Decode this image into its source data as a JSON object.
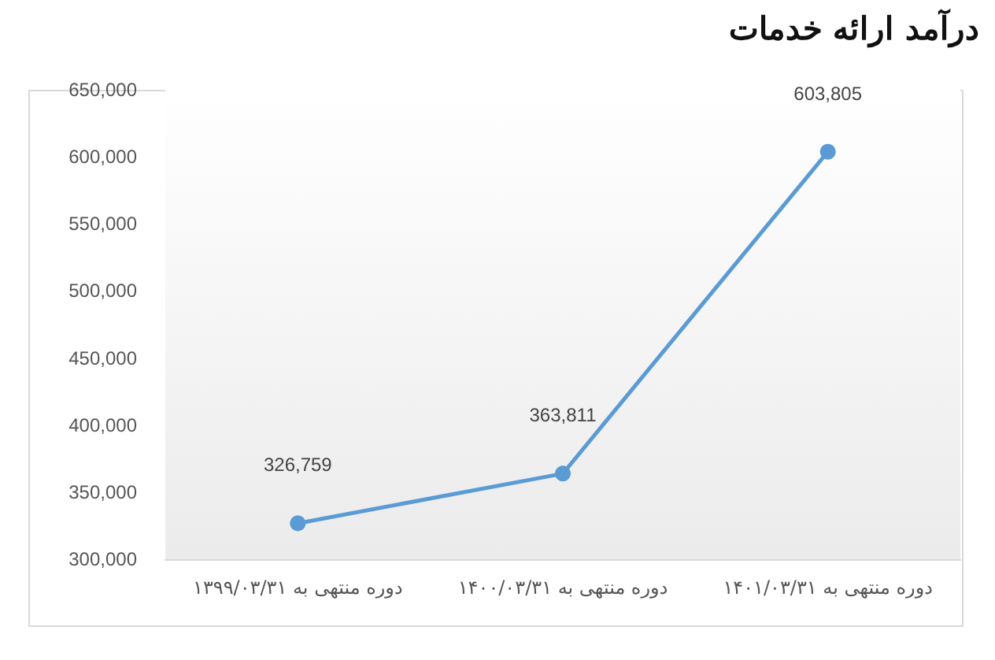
{
  "chart_data": {
    "type": "line",
    "title": "درآمد ارائه خدمات",
    "categories": [
      "دوره منتهی به ۱۳۹۹/۰۳/۳۱",
      "دوره منتهی به ۱۴۰۰/۰۳/۳۱",
      "دوره منتهی به ۱۴۰۱/۰۳/۳۱"
    ],
    "series": [
      {
        "color": "#5b9bd5",
        "values": [
          326759,
          363811,
          603805
        ],
        "value_labels": [
          "326,759",
          "363,811",
          "603,805"
        ]
      }
    ],
    "ylim": [
      300000,
      650000
    ],
    "yticks": [
      {
        "value": 300000,
        "label": "300,000"
      },
      {
        "value": 350000,
        "label": "350,000"
      },
      {
        "value": 400000,
        "label": "400,000"
      },
      {
        "value": 450000,
        "label": "450,000"
      },
      {
        "value": 500000,
        "label": "500,000"
      },
      {
        "value": 550000,
        "label": "550,000"
      },
      {
        "value": 600000,
        "label": "600,000"
      },
      {
        "value": 650000,
        "label": "650,000"
      }
    ],
    "grid": false,
    "marker": "circle",
    "line_style": "solid"
  }
}
